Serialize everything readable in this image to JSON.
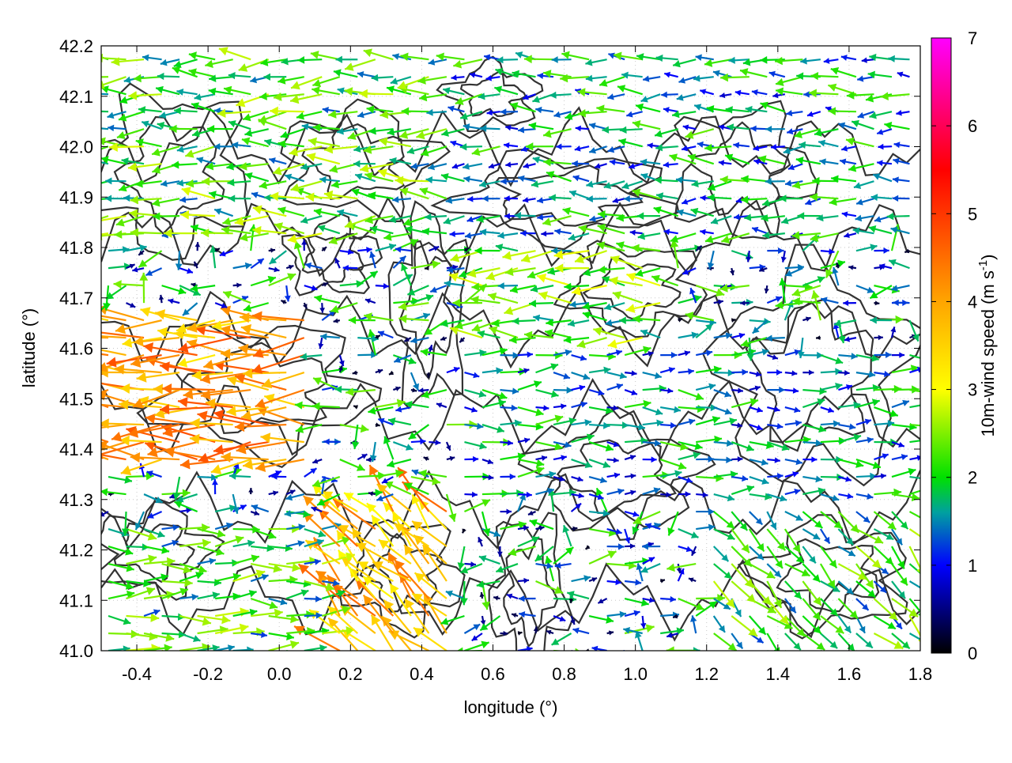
{
  "chart_data": {
    "type": "vector-field",
    "xlabel": "longitude (°)",
    "ylabel": "latitude (°)",
    "xlim": [
      -0.5,
      1.8
    ],
    "ylim": [
      41.0,
      42.2
    ],
    "x_ticks": [
      -0.4,
      -0.2,
      0.0,
      0.2,
      0.4,
      0.6,
      0.8,
      1.0,
      1.2,
      1.4,
      1.6,
      1.8
    ],
    "x_tick_labels": [
      "-0.4",
      "-0.2",
      "0.0",
      "0.2",
      "0.4",
      "0.6",
      "0.8",
      "1.0",
      "1.2",
      "1.4",
      "1.6",
      "1.8"
    ],
    "y_ticks": [
      41.0,
      41.1,
      41.2,
      41.3,
      41.4,
      41.5,
      41.6,
      41.7,
      41.8,
      41.9,
      42.0,
      42.1,
      42.2
    ],
    "y_tick_labels": [
      "41.0",
      "41.1",
      "41.2",
      "41.3",
      "41.4",
      "41.5",
      "41.6",
      "41.7",
      "41.8",
      "41.9",
      "42.0",
      "42.1",
      "42.2"
    ],
    "grid": true,
    "colorbar": {
      "label": "10m-wind speed (m s",
      "label_sup": "-1",
      "label_end": ")",
      "range": [
        0,
        7
      ],
      "ticks": [
        0,
        1,
        2,
        3,
        4,
        5,
        6,
        7
      ],
      "tick_labels": [
        "0",
        "1",
        "2",
        "3",
        "4",
        "5",
        "6",
        "7"
      ],
      "colormap": [
        {
          "v": 0.0,
          "color": "#000000"
        },
        {
          "v": 1.0,
          "color": "#0000ff"
        },
        {
          "v": 1.6,
          "color": "#00a0a0"
        },
        {
          "v": 2.0,
          "color": "#00e000"
        },
        {
          "v": 3.0,
          "color": "#ffff00"
        },
        {
          "v": 4.0,
          "color": "#ffa500"
        },
        {
          "v": 5.5,
          "color": "#ff0000"
        },
        {
          "v": 7.0,
          "color": "#ff00ff"
        }
      ]
    },
    "vector_grid": {
      "lon_start": -0.48,
      "lon_step": 0.05,
      "lat_start": 41.0,
      "lat_step": 0.0345
    },
    "regions": [
      {
        "lon": [
          -0.5,
          0.1
        ],
        "lat": [
          41.35,
          41.68
        ],
        "dir": "W",
        "speed": 4.0
      },
      {
        "lon": [
          0.15,
          0.5
        ],
        "lat": [
          41.0,
          41.3
        ],
        "dir": "NW",
        "speed": 3.8
      },
      {
        "lon": [
          -0.5,
          0.2
        ],
        "lat": [
          41.0,
          41.25
        ],
        "dir": "E",
        "speed": 2.0
      },
      {
        "lon": [
          0.55,
          1.1
        ],
        "lat": [
          41.6,
          41.8
        ],
        "dir": "W",
        "speed": 2.2
      },
      {
        "lon": [
          1.2,
          1.8
        ],
        "lat": [
          41.0,
          41.3
        ],
        "dir": "SE",
        "speed": 2.0
      },
      {
        "lon": [
          -0.5,
          0.5
        ],
        "lat": [
          41.8,
          42.2
        ],
        "dir": "W",
        "speed": 2.1
      },
      {
        "lon": [
          0.5,
          1.8
        ],
        "lat": [
          41.8,
          42.2
        ],
        "dir": "W",
        "speed": 1.6
      },
      {
        "lon": [
          0.5,
          1.8
        ],
        "lat": [
          41.3,
          41.6
        ],
        "dir": "E",
        "speed": 1.5
      }
    ],
    "contours": "terrain elevation isolines (dark gray)"
  }
}
